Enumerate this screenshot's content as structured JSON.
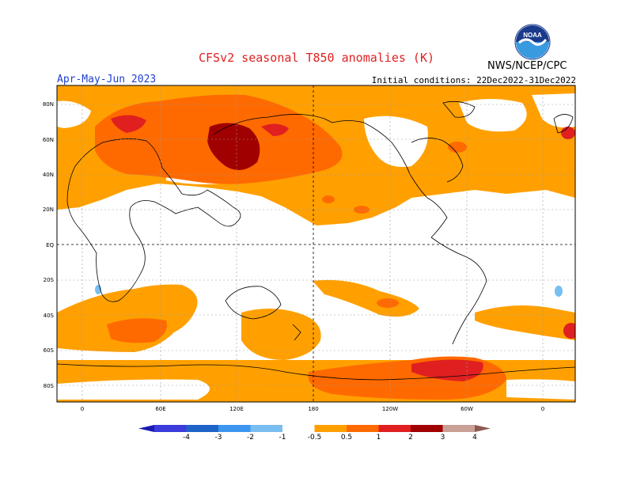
{
  "header": {
    "title": "CFSv2 seasonal T850 anomalies (K)",
    "agency": "NWS/NCEP/CPC",
    "period": "Apr-May-Jun 2023",
    "initial_conditions": "Initial conditions: 22Dec2022-31Dec2022",
    "logo_text": "NOAA"
  },
  "map": {
    "lat_labels": [
      "80N",
      "60N",
      "40N",
      "20N",
      "EQ",
      "20S",
      "40S",
      "60S",
      "80S"
    ],
    "lon_labels": [
      "0",
      "60E",
      "120E",
      "180",
      "120W",
      "60W",
      "0"
    ]
  },
  "colorbar": {
    "labels": [
      "-4",
      "-3",
      "-2",
      "-1",
      "-0.5",
      "0.5",
      "1",
      "2",
      "3",
      "4"
    ],
    "colors": [
      "#1a1ab4",
      "#3c3cdc",
      "#1e64c8",
      "#3c96f0",
      "#78bef0",
      "#ffffff",
      "#ffa000",
      "#ff6a00",
      "#e02020",
      "#a00000",
      "#c8a096",
      "#8c5a50"
    ]
  },
  "chart_data": {
    "type": "heatmap",
    "title": "CFSv2 seasonal T850 anomalies (K)",
    "variable": "T850 anomaly",
    "units": "K",
    "period": "Apr-May-Jun 2023",
    "initial_conditions": "22Dec2022-31Dec2022",
    "color_levels": [
      -4,
      -3,
      -2,
      -1,
      -0.5,
      0.5,
      1,
      2,
      3,
      4
    ],
    "projection": "cylindrical equidistant, centered on 180",
    "regions": [
      {
        "name": "Central Asia / Mongolia",
        "anomaly_range": "3 to 4"
      },
      {
        "name": "Northern Eurasia",
        "anomaly_range": "1 to 2"
      },
      {
        "name": "North Pacific",
        "anomaly_range": "0.5 to 1"
      },
      {
        "name": "Tropical band",
        "anomaly_range": "-0.5 to 0.5"
      },
      {
        "name": "Southern Indian Ocean",
        "anomaly_range": "1 to 2"
      },
      {
        "name": "South Pacific",
        "anomaly_range": "1 to 2"
      },
      {
        "name": "Antarctica (West)",
        "anomaly_range": "2 to 3"
      }
    ]
  }
}
